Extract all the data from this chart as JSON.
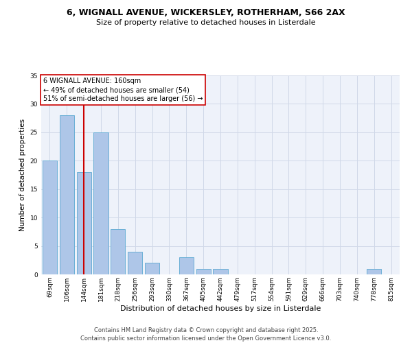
{
  "title": "6, WIGNALL AVENUE, WICKERSLEY, ROTHERHAM, S66 2AX",
  "subtitle": "Size of property relative to detached houses in Listerdale",
  "xlabel": "Distribution of detached houses by size in Listerdale",
  "ylabel": "Number of detached properties",
  "categories": [
    "69sqm",
    "106sqm",
    "144sqm",
    "181sqm",
    "218sqm",
    "256sqm",
    "293sqm",
    "330sqm",
    "367sqm",
    "405sqm",
    "442sqm",
    "479sqm",
    "517sqm",
    "554sqm",
    "591sqm",
    "629sqm",
    "666sqm",
    "703sqm",
    "740sqm",
    "778sqm",
    "815sqm"
  ],
  "values": [
    20,
    28,
    18,
    25,
    8,
    4,
    2,
    0,
    3,
    1,
    1,
    0,
    0,
    0,
    0,
    0,
    0,
    0,
    0,
    1,
    0
  ],
  "bar_color": "#aec6e8",
  "bar_edge_color": "#6aafd6",
  "annotation_box_text": "6 WIGNALL AVENUE: 160sqm\n← 49% of detached houses are smaller (54)\n51% of semi-detached houses are larger (56) →",
  "vline_x": 2.0,
  "vline_color": "#cc0000",
  "box_edge_color": "#cc0000",
  "grid_color": "#d0d8e8",
  "background_color": "#eef2fa",
  "footer_text": "Contains HM Land Registry data © Crown copyright and database right 2025.\nContains public sector information licensed under the Open Government Licence v3.0.",
  "ylim": [
    0,
    35
  ],
  "yticks": [
    0,
    5,
    10,
    15,
    20,
    25,
    30,
    35
  ],
  "title_fontsize": 9,
  "subtitle_fontsize": 8,
  "xlabel_fontsize": 8,
  "ylabel_fontsize": 7.5,
  "tick_fontsize": 6.5,
  "ann_fontsize": 7,
  "footer_fontsize": 6
}
